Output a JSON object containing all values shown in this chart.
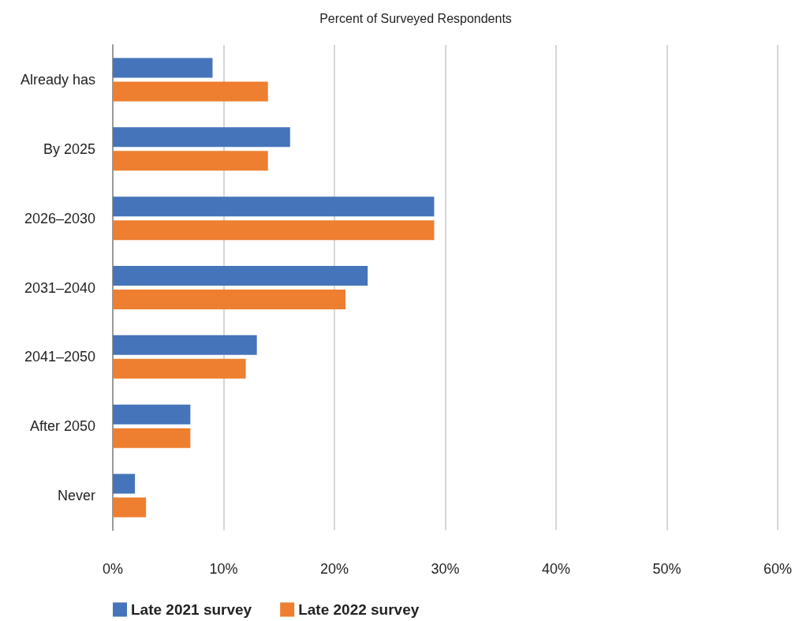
{
  "chart_data": {
    "type": "bar",
    "orientation": "horizontal",
    "xlabel": "Percent of Surveyed Respondents",
    "categories": [
      "Already has",
      "By 2025",
      "2026–2030",
      "2031–2040",
      "2041–2050",
      "After 2050",
      "Never"
    ],
    "series": [
      {
        "name": "Late 2021 survey",
        "color": "#4674ba",
        "values": [
          9,
          16,
          29,
          23,
          13,
          7,
          2
        ]
      },
      {
        "name": "Late 2022 survey",
        "color": "#ee7e30",
        "values": [
          14,
          14,
          29,
          21,
          12,
          7,
          3
        ]
      }
    ],
    "xlim": [
      0,
      60
    ],
    "xticks": [
      {
        "value": 0,
        "label": "0%"
      },
      {
        "value": 10,
        "label": "10%"
      },
      {
        "value": 20,
        "label": "20%"
      },
      {
        "value": 30,
        "label": "30%"
      },
      {
        "value": 40,
        "label": "40%"
      },
      {
        "value": 50,
        "label": "50%"
      },
      {
        "value": 60,
        "label": "60%"
      }
    ],
    "grid": "x",
    "legend": "bottom"
  }
}
